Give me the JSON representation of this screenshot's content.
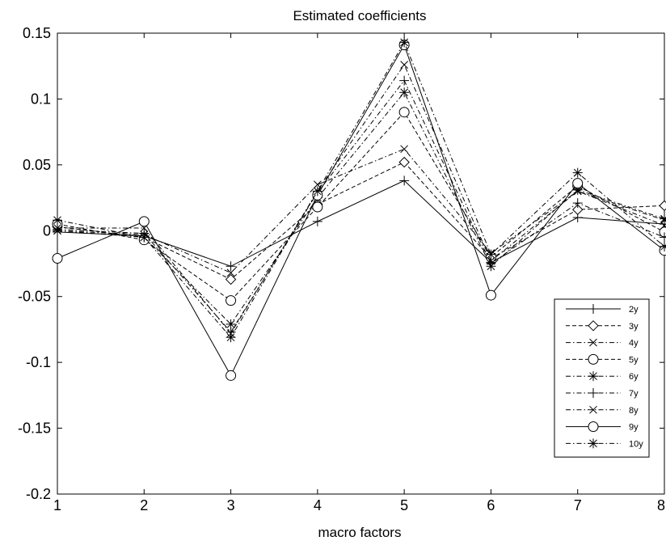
{
  "chart_data": {
    "type": "line",
    "title": "Estimated coefficients",
    "xlabel": "macro factors",
    "ylabel": "",
    "x": [
      1,
      2,
      3,
      4,
      5,
      6,
      7,
      8
    ],
    "xlim": [
      1,
      8
    ],
    "ylim": [
      -0.2,
      0.15
    ],
    "xticks": [
      "1",
      "2",
      "3",
      "4",
      "5",
      "6",
      "7",
      "8"
    ],
    "yticks": [
      "0.15",
      "0.1",
      "0.05",
      "0",
      "-0.05",
      "-0.1",
      "-0.15",
      "-0.2"
    ],
    "ytick_values": [
      0.15,
      0.1,
      0.05,
      0,
      -0.05,
      -0.1,
      -0.15,
      -0.2
    ],
    "grid": false,
    "legend_position": "bottom-right",
    "series": [
      {
        "name": "2y",
        "line": "solid",
        "marker": "plus",
        "values": [
          -0.001,
          -0.004,
          -0.027,
          0.007,
          0.038,
          -0.024,
          0.01,
          0.005
        ]
      },
      {
        "name": "3y",
        "line": "dashed",
        "marker": "diamond",
        "values": [
          0.003,
          -0.005,
          -0.037,
          0.02,
          0.052,
          -0.021,
          0.016,
          0.019
        ]
      },
      {
        "name": "4y",
        "line": "dashdot",
        "marker": "x",
        "values": [
          0.0,
          -0.003,
          -0.032,
          0.035,
          0.062,
          -0.017,
          0.03,
          0.008
        ]
      },
      {
        "name": "5y",
        "line": "dashed",
        "marker": "circle",
        "values": [
          0.005,
          -0.007,
          -0.053,
          0.018,
          0.09,
          -0.02,
          0.034,
          -0.001
        ]
      },
      {
        "name": "6y",
        "line": "dashdot",
        "marker": "asterisk",
        "values": [
          0.0,
          -0.005,
          -0.071,
          0.025,
          0.105,
          -0.027,
          0.031,
          0.009
        ]
      },
      {
        "name": "7y",
        "line": "dashdot",
        "marker": "plus",
        "values": [
          0.001,
          -0.002,
          -0.077,
          0.029,
          0.114,
          -0.025,
          0.021,
          -0.005
        ]
      },
      {
        "name": "8y",
        "line": "dashdot",
        "marker": "x",
        "values": [
          0.002,
          0.002,
          -0.078,
          0.03,
          0.126,
          -0.023,
          0.03,
          0.004
        ]
      },
      {
        "name": "9y",
        "line": "solid",
        "marker": "circle",
        "values": [
          -0.021,
          0.007,
          -0.11,
          0.027,
          0.141,
          -0.049,
          0.036,
          -0.015
        ]
      },
      {
        "name": "10y",
        "line": "dashdot",
        "marker": "asterisk",
        "values": [
          0.008,
          -0.005,
          -0.081,
          0.03,
          0.143,
          -0.018,
          0.044,
          -0.012
        ]
      }
    ]
  }
}
